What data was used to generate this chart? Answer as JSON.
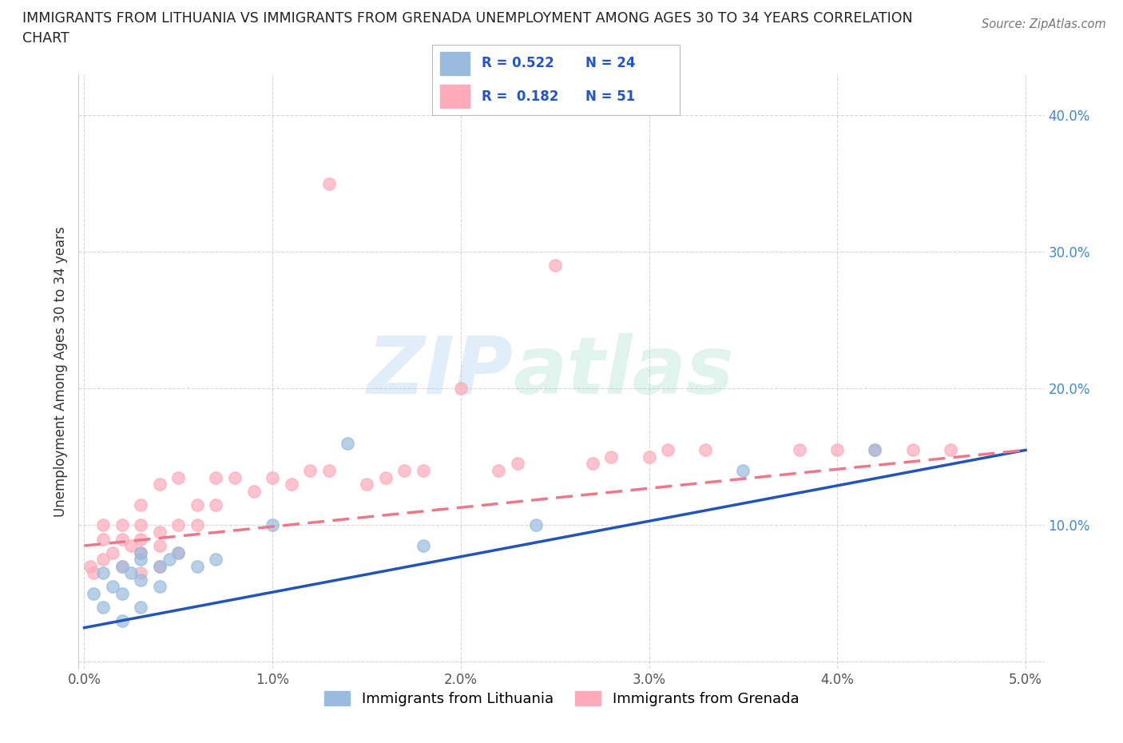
{
  "title_line1": "IMMIGRANTS FROM LITHUANIA VS IMMIGRANTS FROM GRENADA UNEMPLOYMENT AMONG AGES 30 TO 34 YEARS CORRELATION",
  "title_line2": "CHART",
  "source": "Source: ZipAtlas.com",
  "ylabel_label": "Unemployment Among Ages 30 to 34 years",
  "watermark1": "ZIP",
  "watermark2": "atlas",
  "xlim": [
    -0.0003,
    0.051
  ],
  "ylim": [
    -0.005,
    0.43
  ],
  "xticks": [
    0.0,
    0.01,
    0.02,
    0.03,
    0.04,
    0.05
  ],
  "yticks": [
    0.0,
    0.1,
    0.2,
    0.3,
    0.4
  ],
  "xtick_labels": [
    "0.0%",
    "1.0%",
    "2.0%",
    "3.0%",
    "4.0%",
    "5.0%"
  ],
  "ytick_labels": [
    "",
    "10.0%",
    "20.0%",
    "30.0%",
    "40.0%"
  ],
  "blue_scatter_color": "#99BBDD",
  "pink_scatter_color": "#FFAABB",
  "blue_line_color": "#2255BB",
  "pink_line_color": "#EE7788",
  "legend_blue_R": "R = 0.522",
  "legend_blue_N": "N = 24",
  "legend_pink_R": "R =  0.182",
  "legend_pink_N": "N = 51",
  "blue_scatter_x": [
    0.0005,
    0.001,
    0.001,
    0.0015,
    0.002,
    0.002,
    0.002,
    0.0025,
    0.003,
    0.003,
    0.003,
    0.003,
    0.004,
    0.004,
    0.0045,
    0.005,
    0.006,
    0.007,
    0.01,
    0.014,
    0.018,
    0.024,
    0.035,
    0.042
  ],
  "blue_scatter_y": [
    0.05,
    0.04,
    0.065,
    0.055,
    0.03,
    0.05,
    0.07,
    0.065,
    0.04,
    0.06,
    0.075,
    0.08,
    0.055,
    0.07,
    0.075,
    0.08,
    0.07,
    0.075,
    0.1,
    0.16,
    0.085,
    0.1,
    0.14,
    0.155
  ],
  "pink_scatter_x": [
    0.0003,
    0.0005,
    0.001,
    0.001,
    0.001,
    0.0015,
    0.002,
    0.002,
    0.002,
    0.0025,
    0.003,
    0.003,
    0.003,
    0.003,
    0.003,
    0.004,
    0.004,
    0.004,
    0.004,
    0.005,
    0.005,
    0.005,
    0.006,
    0.006,
    0.007,
    0.007,
    0.008,
    0.009,
    0.01,
    0.011,
    0.012,
    0.013,
    0.013,
    0.015,
    0.016,
    0.017,
    0.018,
    0.02,
    0.022,
    0.023,
    0.025,
    0.027,
    0.028,
    0.03,
    0.031,
    0.033,
    0.038,
    0.04,
    0.042,
    0.044,
    0.046
  ],
  "pink_scatter_y": [
    0.07,
    0.065,
    0.075,
    0.09,
    0.1,
    0.08,
    0.07,
    0.09,
    0.1,
    0.085,
    0.065,
    0.08,
    0.09,
    0.1,
    0.115,
    0.07,
    0.085,
    0.095,
    0.13,
    0.08,
    0.1,
    0.135,
    0.1,
    0.115,
    0.115,
    0.135,
    0.135,
    0.125,
    0.135,
    0.13,
    0.14,
    0.14,
    0.35,
    0.13,
    0.135,
    0.14,
    0.14,
    0.2,
    0.14,
    0.145,
    0.29,
    0.145,
    0.15,
    0.15,
    0.155,
    0.155,
    0.155,
    0.155,
    0.155,
    0.155,
    0.155
  ],
  "blue_line_x": [
    0.0,
    0.05
  ],
  "blue_line_y": [
    0.025,
    0.155
  ],
  "pink_line_x": [
    0.0,
    0.05
  ],
  "pink_line_y": [
    0.085,
    0.155
  ],
  "grid_color": "#CCCCCC",
  "tick_color": "#4488CC",
  "background_color": "#FFFFFF",
  "scatter_size": 120,
  "scatter_alpha": 0.7
}
